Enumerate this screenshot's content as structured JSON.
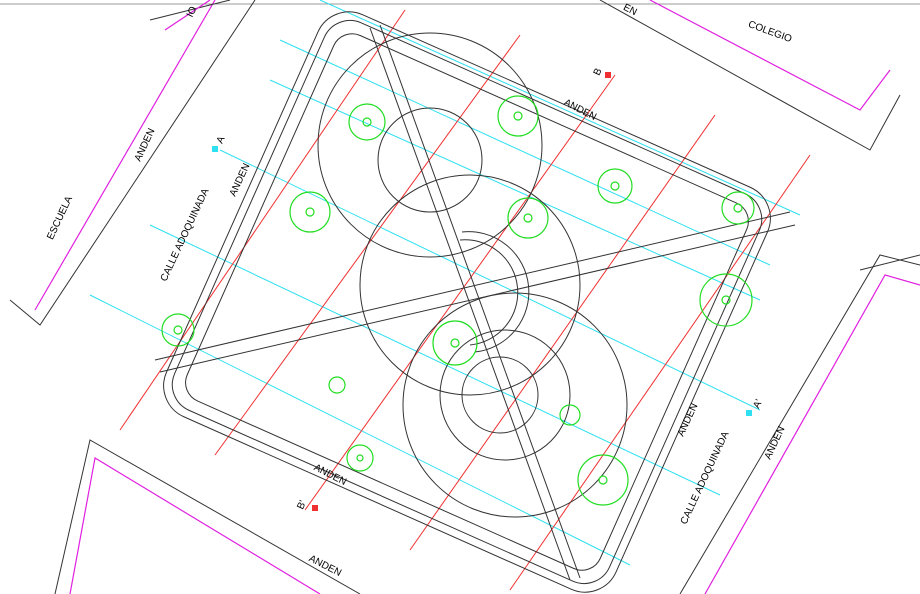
{
  "labels": [
    "COLEGIO",
    "ESCUELA",
    "ANDEN",
    "CALLE ADOQUINADA",
    "ANDEN",
    "ANDEN",
    "ANDEN",
    "ANDEN",
    "ANDEN",
    "CALLE ADOQUINADA",
    "ANDEN",
    "A",
    "A'",
    "B",
    "B'",
    "IO",
    "EN"
  ]
}
